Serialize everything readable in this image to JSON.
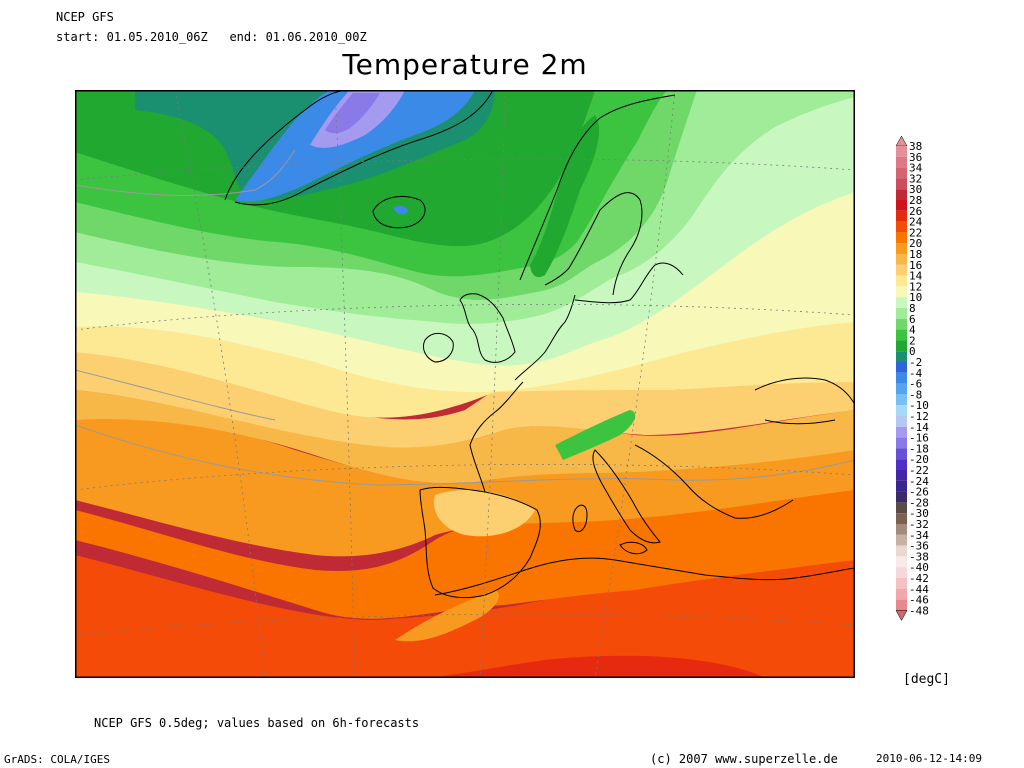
{
  "header": {
    "model": "NCEP GFS",
    "start_label": "start:",
    "start_value": "01.05.2010_06Z",
    "end_label": "end:",
    "end_value": "01.06.2010_00Z"
  },
  "title": "Temperature 2m",
  "legend": {
    "unit": "[degC]",
    "levels": [
      "38",
      "36",
      "34",
      "32",
      "30",
      "28",
      "26",
      "24",
      "22",
      "20",
      "18",
      "16",
      "14",
      "12",
      "10",
      "8",
      "6",
      "4",
      "2",
      "0",
      "-2",
      "-4",
      "-6",
      "-8",
      "-10",
      "-12",
      "-14",
      "-16",
      "-18",
      "-20",
      "-22",
      "-24",
      "-26",
      "-28",
      "-30",
      "-32",
      "-34",
      "-36",
      "-38",
      "-40",
      "-42",
      "-44",
      "-46",
      "-48"
    ],
    "colors": [
      "#e3909a",
      "#db7a86",
      "#d46470",
      "#cc4e5c",
      "#c02a34",
      "#d0121a",
      "#e62a10",
      "#f44c08",
      "#fa7400",
      "#f89a20",
      "#f8b848",
      "#fcd070",
      "#fde994",
      "#f8f8b8",
      "#c8f8c0",
      "#a0ec98",
      "#70d868",
      "#3cc440",
      "#20a830",
      "#1a9070",
      "#2a66d8",
      "#3c8ae8",
      "#54a4f0",
      "#78c0f4",
      "#a4daf8",
      "#b4c8f4",
      "#a49af0",
      "#8a7ae8",
      "#6850d8",
      "#5030c4",
      "#4424a8",
      "#3a2690",
      "#3a2a6a",
      "#5c4a48",
      "#7c6050",
      "#a48a78",
      "#c8b0a2",
      "#e8d8d0",
      "#f8eae8",
      "#f6d8d8",
      "#f4c0c2",
      "#f0a8ac",
      "#e6888e",
      "#d8646c"
    ]
  },
  "footnote": "NCEP GFS 0.5deg; values based on 6h-forecasts",
  "credits": {
    "grads": "GrADS: COLA/IGES",
    "copyright": "(c) 2007 www.superzelle.de",
    "datestamp": "2010-06-12-14:09"
  },
  "map_colors": {
    "cold_blue": "#3c8ae8",
    "teal": "#1a9070",
    "green_dark": "#20a830",
    "green": "#3cc440",
    "green_mid": "#70d868",
    "green_light": "#a0ec98",
    "pale_green": "#c8f8c0",
    "pale_yellow": "#f8f8b8",
    "yellow": "#fde994",
    "light_orange": "#fcd070",
    "orange_pale": "#f8b848",
    "orange": "#f89a20",
    "orange_deep": "#fa7400",
    "red_orange": "#f44c08",
    "red": "#e62a10",
    "dark_red": "#c02a34",
    "coast": "#000000",
    "contour": "#9a9a9a"
  }
}
